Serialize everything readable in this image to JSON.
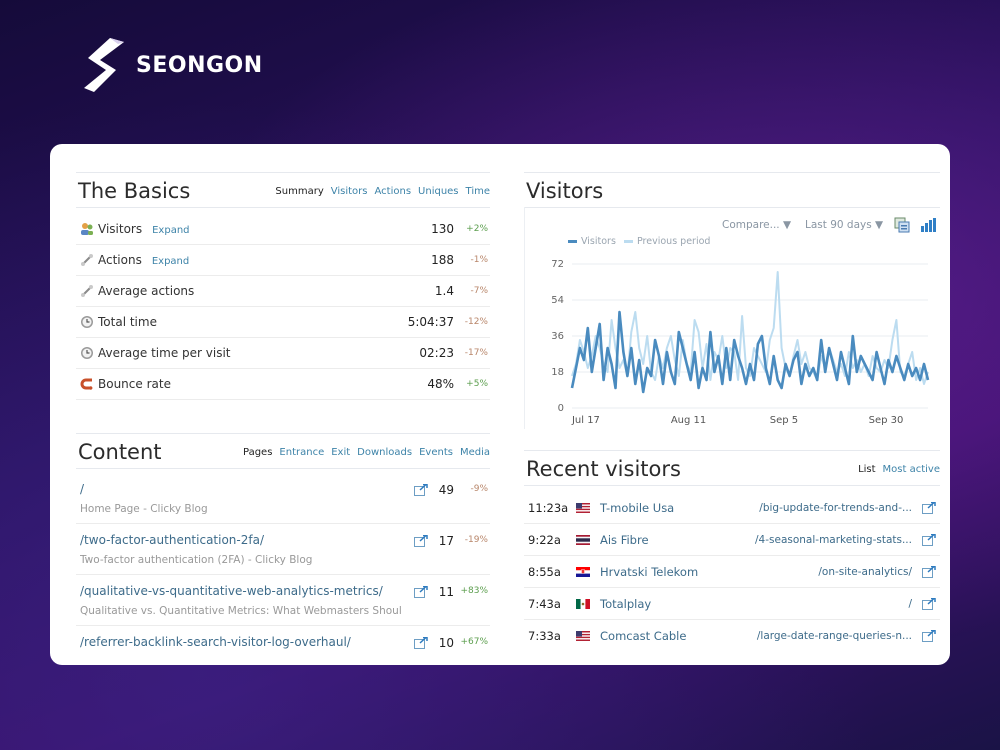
{
  "brand": {
    "name": "SEONGON"
  },
  "basics": {
    "title": "The Basics",
    "tabs": [
      "Summary",
      "Visitors",
      "Actions",
      "Uniques",
      "Time"
    ],
    "rows": [
      {
        "label": "Visitors",
        "expand": "Expand",
        "value": "130",
        "change": "+2%",
        "icon": "visitors-icon"
      },
      {
        "label": "Actions",
        "expand": "Expand",
        "value": "188",
        "change": "-1%",
        "icon": "actions-icon"
      },
      {
        "label": "Average actions",
        "expand": "",
        "value": "1.4",
        "change": "-7%",
        "icon": "average-actions-icon"
      },
      {
        "label": "Total time",
        "expand": "",
        "value": "5:04:37",
        "change": "-12%",
        "icon": "clock-icon"
      },
      {
        "label": "Average time per visit",
        "expand": "",
        "value": "02:23",
        "change": "-17%",
        "icon": "clock-icon"
      },
      {
        "label": "Bounce rate",
        "expand": "",
        "value": "48%",
        "change": "+5%",
        "icon": "bounce-icon"
      }
    ]
  },
  "content": {
    "title": "Content",
    "tabs": [
      "Pages",
      "Entrance",
      "Exit",
      "Downloads",
      "Events",
      "Media"
    ],
    "items": [
      {
        "path": "/",
        "subtitle": "Home Page - Clicky Blog",
        "value": "49",
        "change": "-9%"
      },
      {
        "path": "/two-factor-authentication-2fa/",
        "subtitle": "Two-factor authentication (2FA) - Clicky Blog",
        "value": "17",
        "change": "-19%"
      },
      {
        "path": "/qualitative-vs-quantitative-web-analytics-metrics/",
        "subtitle": "Qualitative vs. Quantitative Metrics: What Webmasters Should...",
        "value": "11",
        "change": "+83%"
      },
      {
        "path": "/referrer-backlink-search-visitor-log-overhaul/",
        "subtitle": "",
        "value": "10",
        "change": "+67%"
      }
    ]
  },
  "visitors": {
    "title": "Visitors",
    "compare": "Compare... ▼",
    "range": "Last 90 days ▼"
  },
  "chart_data": {
    "type": "line",
    "title": "",
    "legend": [
      "Visitors",
      "Previous period"
    ],
    "legend_placement": "top-left",
    "grid": true,
    "ylim": [
      0,
      72
    ],
    "yticks": [
      0,
      18,
      36,
      54,
      72
    ],
    "x_tick_labels": [
      "Jul 17",
      "Aug 11",
      "Sep 5",
      "Sep 30"
    ],
    "x_tick_index": [
      1,
      26,
      51,
      76
    ],
    "series": [
      {
        "name": "Visitors",
        "color": "#4a8bbf",
        "values": [
          10,
          20,
          30,
          24,
          40,
          18,
          30,
          42,
          14,
          30,
          22,
          10,
          48,
          28,
          16,
          30,
          12,
          24,
          8,
          20,
          16,
          34,
          26,
          12,
          28,
          18,
          12,
          38,
          30,
          22,
          14,
          28,
          10,
          20,
          14,
          38,
          18,
          26,
          12,
          30,
          14,
          34,
          26,
          20,
          12,
          22,
          14,
          32,
          36,
          20,
          12,
          26,
          14,
          10,
          22,
          16,
          24,
          28,
          12,
          22,
          16,
          20,
          14,
          34,
          18,
          30,
          22,
          14,
          28,
          20,
          12,
          36,
          18,
          26,
          22,
          18,
          14,
          28,
          20,
          12,
          24,
          18,
          26,
          20,
          14,
          22,
          16,
          20,
          14,
          22,
          14
        ]
      },
      {
        "name": "Previous period",
        "color": "#bcdcf0",
        "values": [
          16,
          22,
          34,
          28,
          20,
          26,
          36,
          30,
          22,
          18,
          44,
          30,
          20,
          24,
          16,
          38,
          48,
          30,
          22,
          36,
          18,
          14,
          26,
          20,
          30,
          36,
          24,
          16,
          34,
          22,
          18,
          44,
          38,
          20,
          32,
          14,
          28,
          24,
          36,
          20,
          30,
          28,
          14,
          46,
          20,
          16,
          30,
          26,
          22,
          18,
          34,
          40,
          68,
          30,
          20,
          16,
          26,
          34,
          22,
          28,
          20,
          18,
          14,
          26,
          20,
          30,
          24,
          18,
          22,
          16,
          28,
          20,
          24,
          18,
          22,
          16,
          26,
          20,
          18,
          24,
          20,
          34,
          44,
          18,
          16,
          22,
          28,
          14,
          20,
          12,
          18
        ]
      }
    ]
  },
  "recent": {
    "title": "Recent visitors",
    "tabs": [
      "List",
      "Most active"
    ],
    "rows": [
      {
        "time": "11:23a",
        "flag": "us-flag-icon",
        "name": "T-mobile Usa",
        "path": "/big-update-for-trends-and-..."
      },
      {
        "time": "9:22a",
        "flag": "thailand-flag-icon",
        "name": "Ais Fibre",
        "path": "/4-seasonal-marketing-stats..."
      },
      {
        "time": "8:55a",
        "flag": "croatia-flag-icon",
        "name": "Hrvatski Telekom",
        "path": "/on-site-analytics/"
      },
      {
        "time": "7:43a",
        "flag": "mexico-flag-icon",
        "name": "Totalplay",
        "path": "/"
      },
      {
        "time": "7:33a",
        "flag": "us-flag-icon",
        "name": "Comcast Cable",
        "path": "/large-date-range-queries-n..."
      }
    ]
  }
}
